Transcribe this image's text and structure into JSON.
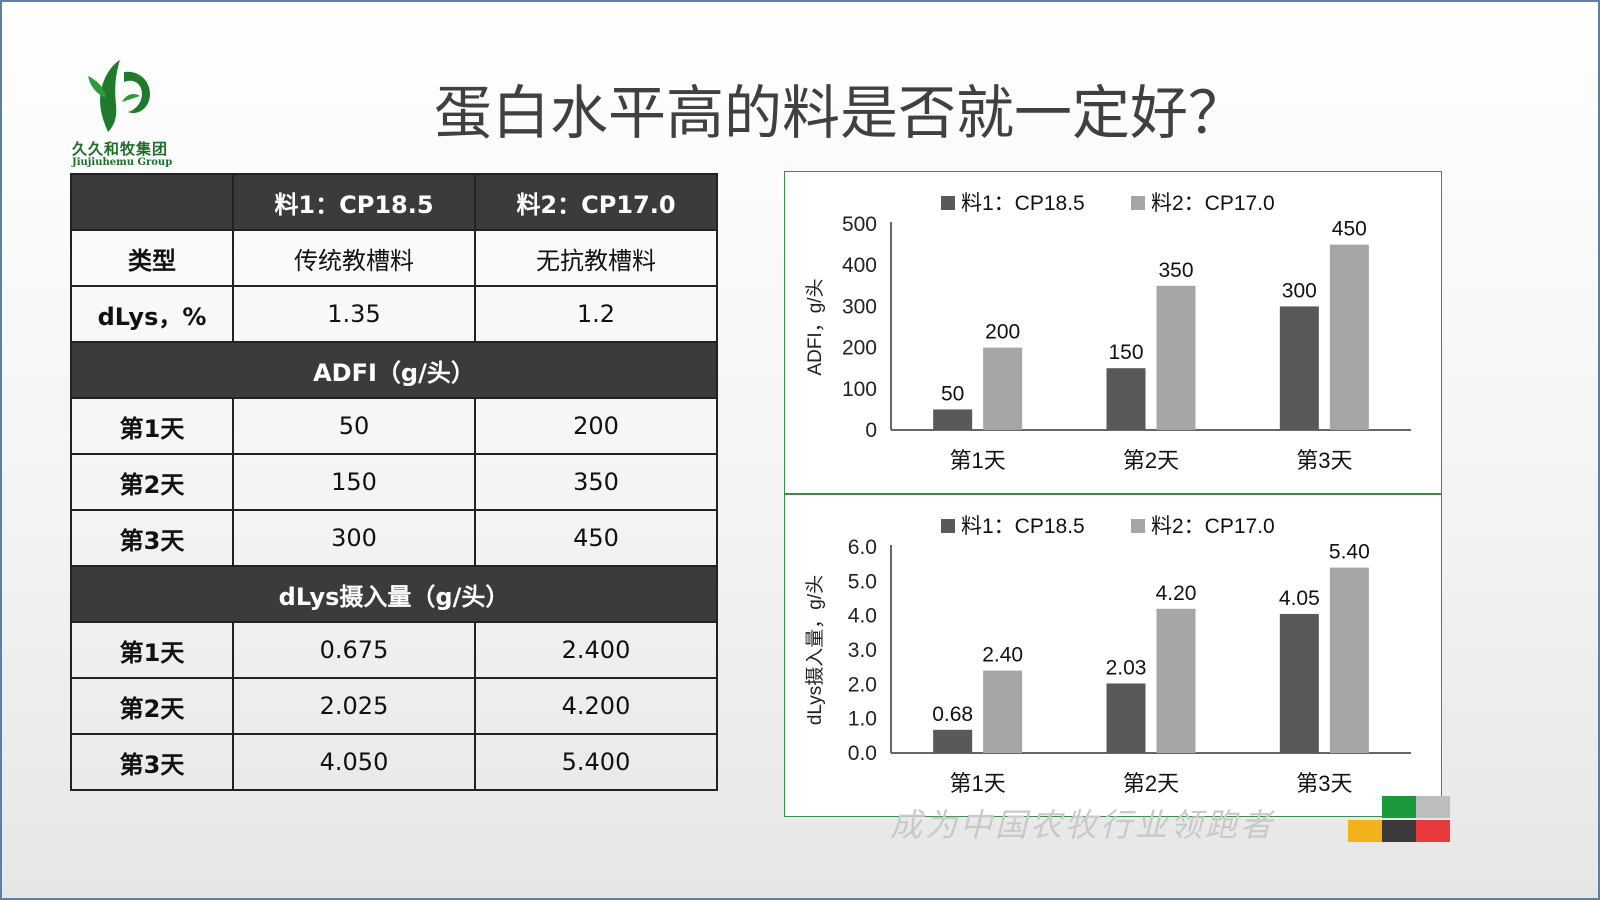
{
  "title": "蛋白水平高的料是否就一定好？",
  "logo": {
    "cn": "久久和牧集团",
    "en": "Jiujiuhemu Group"
  },
  "table": {
    "header": [
      "",
      "料1：CP18.5",
      "料2：CP17.0"
    ],
    "type_row": [
      "类型",
      "传统教槽料",
      "无抗教槽料"
    ],
    "dlys_row": [
      "dLys，%",
      "1.35",
      "1.2"
    ],
    "section1": "ADFI（g/头）",
    "adfi_rows": [
      [
        "第1天",
        "50",
        "200"
      ],
      [
        "第2天",
        "150",
        "350"
      ],
      [
        "第3天",
        "300",
        "450"
      ]
    ],
    "section2": "dLys摄入量（g/头）",
    "dlys_rows": [
      [
        "第1天",
        "0.675",
        "2.400"
      ],
      [
        "第2天",
        "2.025",
        "4.200"
      ],
      [
        "第3天",
        "4.050",
        "5.400"
      ]
    ]
  },
  "chart_data": [
    {
      "type": "bar",
      "categories": [
        "第1天",
        "第2天",
        "第3天"
      ],
      "series": [
        {
          "name": "料1：CP18.5",
          "values": [
            50,
            150,
            300
          ],
          "labels": [
            "50",
            "150",
            "300"
          ],
          "color": "#595959"
        },
        {
          "name": "料2：CP17.0",
          "values": [
            200,
            350,
            450
          ],
          "labels": [
            "200",
            "350",
            "450"
          ],
          "color": "#a6a6a6"
        }
      ],
      "ylabel": "ADFI，g/头",
      "ylim": [
        0,
        500
      ],
      "yticks": [
        "0",
        "100",
        "200",
        "300",
        "400",
        "500"
      ],
      "legend": "top"
    },
    {
      "type": "bar",
      "categories": [
        "第1天",
        "第2天",
        "第3天"
      ],
      "series": [
        {
          "name": "料1：CP18.5",
          "values": [
            0.675,
            2.025,
            4.05
          ],
          "labels": [
            "0.68",
            "2.03",
            "4.05"
          ],
          "color": "#595959"
        },
        {
          "name": "料2：CP17.0",
          "values": [
            2.4,
            4.2,
            5.4
          ],
          "labels": [
            "2.40",
            "4.20",
            "5.40"
          ],
          "color": "#a6a6a6"
        }
      ],
      "ylabel": "dLys摄入量，g/头",
      "ylim": [
        0,
        6
      ],
      "yticks": [
        "0.0",
        "1.0",
        "2.0",
        "3.0",
        "4.0",
        "5.0",
        "6.0"
      ],
      "legend": "top"
    }
  ],
  "footer": {
    "motto": "成为中国农牧行业领跑者"
  },
  "colors": {
    "frame": "#5b7fa6",
    "chart_border": "#3f8a4f",
    "header_dark": "#3b3b3b",
    "logo_green": "#1d6e28"
  }
}
